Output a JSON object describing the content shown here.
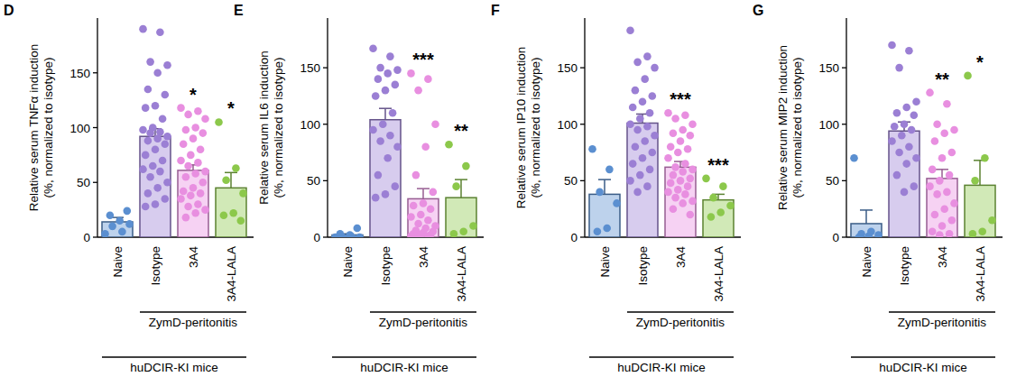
{
  "chart_data": [
    {
      "type": "bar",
      "title": "D",
      "y_label": "Relative serum TNFα induction\n(%, normalized to isotype)",
      "categories": [
        "Naive",
        "Isotype",
        "3A4",
        "3A4-LALA"
      ],
      "values": [
        14,
        92,
        61,
        45
      ],
      "errors": [
        4,
        7,
        5,
        14
      ],
      "points": [
        [
          3,
          5,
          10,
          12,
          15,
          20,
          24
        ],
        [
          190,
          187,
          160,
          157,
          150,
          135,
          130,
          120,
          118,
          108,
          100,
          98,
          96,
          95,
          92,
          90,
          88,
          85,
          80,
          75,
          70,
          65,
          62,
          60,
          55,
          50,
          45,
          40,
          35,
          30,
          28
        ],
        [
          118,
          115,
          112,
          108,
          100,
          98,
          95,
          90,
          85,
          80,
          75,
          70,
          68,
          65,
          60,
          58,
          55,
          50,
          45,
          42,
          40,
          38,
          35,
          30,
          28,
          25,
          22,
          18
        ],
        [
          105,
          63,
          52,
          40,
          22,
          20,
          15
        ]
      ],
      "significance": [
        null,
        null,
        "*",
        "*"
      ],
      "colors": [
        "#5b8fd0",
        "#9b7fd4",
        "#e88fe0",
        "#8cc84b"
      ],
      "group_labels": [
        "ZymD-peritonitis",
        "huDCIR-KI mice"
      ],
      "ylim": [
        0,
        200
      ],
      "yticks": [
        0,
        50,
        100,
        150
      ]
    },
    {
      "type": "bar",
      "title": "E",
      "y_label": "Relative serum IL6 induction\n(%, normalized to isotype)",
      "categories": [
        "Naive",
        "Isotype",
        "3A4",
        "3A4-LALA"
      ],
      "values": [
        2,
        104,
        34,
        35
      ],
      "errors": [
        1,
        10,
        9,
        16
      ],
      "points": [
        [
          0,
          0,
          0,
          0,
          2,
          3,
          8
        ],
        [
          167,
          160,
          150,
          148,
          145,
          140,
          135,
          130,
          125,
          110,
          100,
          95,
          90,
          85,
          80,
          70,
          55,
          45,
          38,
          35
        ],
        [
          145,
          140,
          130,
          100,
          80,
          55,
          40,
          30,
          28,
          25,
          20,
          18,
          15,
          12,
          10,
          8,
          6,
          5,
          4,
          3,
          2,
          2,
          1,
          1,
          0
        ],
        [
          82,
          63,
          45,
          10,
          5,
          3
        ]
      ],
      "significance": [
        null,
        null,
        "***",
        "**"
      ],
      "colors": [
        "#5b8fd0",
        "#9b7fd4",
        "#e88fe0",
        "#8cc84b"
      ],
      "group_labels": [
        "ZymD-peritonitis",
        "huDCIR-KI mice"
      ],
      "ylim": [
        0,
        194
      ],
      "yticks": [
        0,
        50,
        100,
        150
      ]
    },
    {
      "type": "bar",
      "title": "F",
      "y_label": "Relative serum IP10 induction\n(%, normalized to isotype)",
      "categories": [
        "Naive",
        "Isotype",
        "3A4",
        "3A4-LALA"
      ],
      "values": [
        38,
        101,
        62,
        33
      ],
      "errors": [
        13,
        8,
        5,
        5
      ],
      "points": [
        [
          78,
          60,
          40,
          30,
          8,
          5
        ],
        [
          183,
          160,
          155,
          150,
          140,
          130,
          125,
          120,
          115,
          110,
          105,
          100,
          98,
          95,
          90,
          85,
          80,
          75,
          70,
          65,
          60,
          55,
          50,
          45,
          40
        ],
        [
          110,
          108,
          105,
          100,
          95,
          92,
          90,
          85,
          80,
          78,
          75,
          70,
          65,
          62,
          60,
          58,
          55,
          52,
          50,
          48,
          45,
          42,
          40,
          38,
          35,
          32,
          30,
          25,
          20
        ],
        [
          52,
          45,
          35,
          28,
          22,
          18
        ]
      ],
      "significance": [
        null,
        null,
        "***",
        "***"
      ],
      "colors": [
        "#5b8fd0",
        "#9b7fd4",
        "#e88fe0",
        "#8cc84b"
      ],
      "group_labels": [
        "ZymD-peritonitis",
        "huDCIR-KI mice"
      ],
      "ylim": [
        0,
        194
      ],
      "yticks": [
        0,
        50,
        100,
        150
      ]
    },
    {
      "type": "bar",
      "title": "G",
      "y_label": "Relative serum MIP2 induction\n(%, normalized to isotype)",
      "categories": [
        "Naive",
        "Isotype",
        "3A4",
        "3A4-LALA"
      ],
      "values": [
        12,
        94,
        52,
        46
      ],
      "errors": [
        12,
        8,
        8,
        22
      ],
      "points": [
        [
          70,
          5,
          3,
          2,
          1,
          0
        ],
        [
          170,
          165,
          150,
          120,
          115,
          110,
          108,
          100,
          98,
          95,
          90,
          85,
          80,
          75,
          70,
          65,
          55,
          45,
          40
        ],
        [
          128,
          118,
          100,
          95,
          92,
          85,
          75,
          70,
          60,
          55,
          50,
          45,
          40,
          38,
          30,
          25,
          20,
          15,
          10,
          5,
          3,
          2
        ],
        [
          143,
          70,
          50,
          15,
          5,
          3
        ]
      ],
      "significance": [
        null,
        null,
        "**",
        "*"
      ],
      "colors": [
        "#5b8fd0",
        "#9b7fd4",
        "#e88fe0",
        "#8cc84b"
      ],
      "group_labels": [
        "ZymD-peritonitis",
        "huDCIR-KI mice"
      ],
      "ylim": [
        0,
        194
      ],
      "yticks": [
        0,
        50,
        100,
        150
      ]
    }
  ]
}
